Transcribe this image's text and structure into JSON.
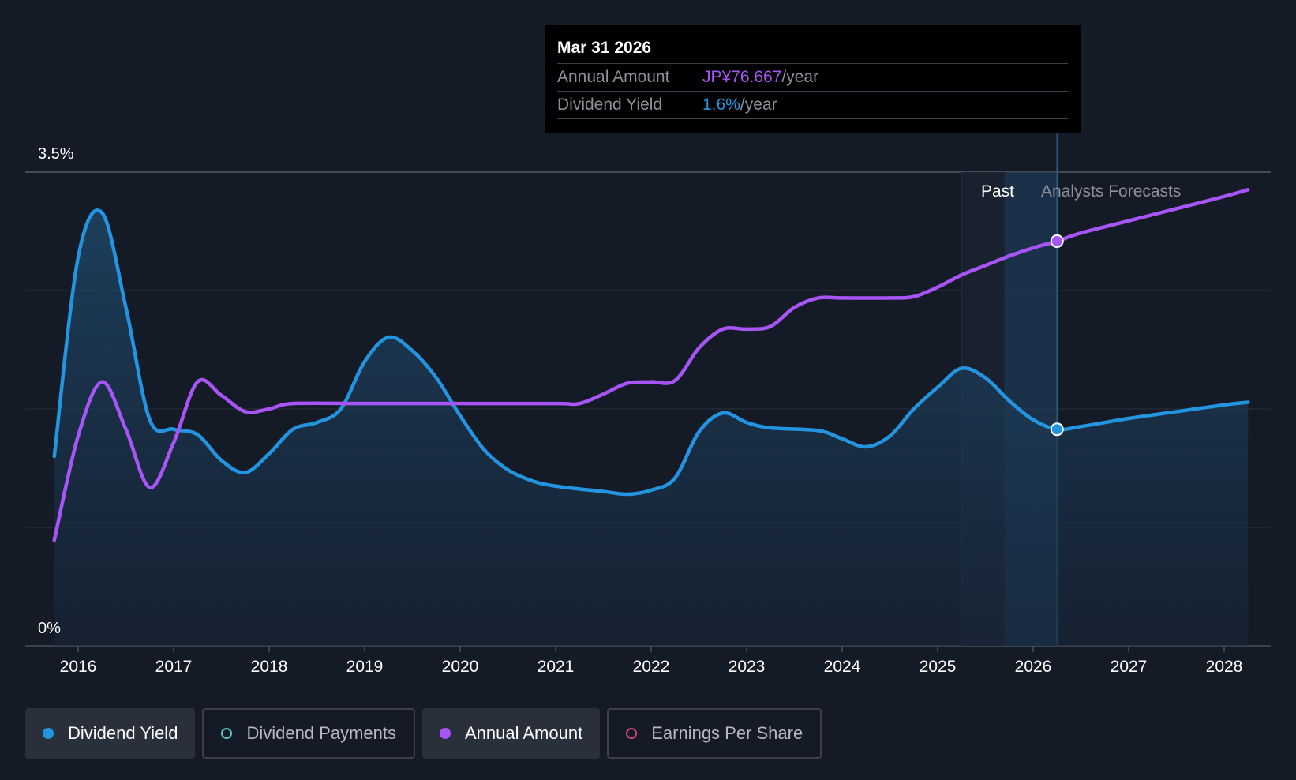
{
  "tooltip": {
    "date": "Mar 31 2026",
    "annual_label": "Annual Amount",
    "annual_value": "JP¥76.667",
    "annual_unit": "/year",
    "yield_label": "Dividend Yield",
    "yield_value": "1.6%",
    "yield_unit": "/year"
  },
  "labels": {
    "past": "Past",
    "forecast": "Analysts Forecasts"
  },
  "legend": [
    {
      "label": "Dividend Yield",
      "color": "#2394df",
      "active": true,
      "filled": true
    },
    {
      "label": "Dividend Payments",
      "color": "#5ec8c0",
      "active": false,
      "filled": false
    },
    {
      "label": "Annual Amount",
      "color": "#a855f7",
      "active": true,
      "filled": true
    },
    {
      "label": "Earnings Per Share",
      "color": "#d0457a",
      "active": false,
      "filled": false
    }
  ],
  "chart_data": {
    "type": "line",
    "x_ticks": [
      "2016",
      "2017",
      "2018",
      "2019",
      "2020",
      "2021",
      "2022",
      "2023",
      "2024",
      "2025",
      "2026",
      "2027",
      "2028"
    ],
    "y_ticks": [
      "0%",
      "3.5%"
    ],
    "ylim": [
      0,
      3.5
    ],
    "xlim": [
      2015.74,
      2028.25
    ],
    "forecast_start": 2025.7,
    "past_band_start": 2025.25,
    "cursor_x": 2026.25,
    "series": [
      {
        "name": "Dividend Yield",
        "color": "#2394df",
        "unit": "%",
        "points": [
          [
            2015.75,
            1.4
          ],
          [
            2016.0,
            2.87
          ],
          [
            2016.25,
            3.2
          ],
          [
            2016.5,
            2.5
          ],
          [
            2016.75,
            1.67
          ],
          [
            2017.0,
            1.6
          ],
          [
            2017.25,
            1.56
          ],
          [
            2017.5,
            1.37
          ],
          [
            2017.75,
            1.28
          ],
          [
            2018.0,
            1.42
          ],
          [
            2018.25,
            1.6
          ],
          [
            2018.5,
            1.65
          ],
          [
            2018.75,
            1.75
          ],
          [
            2019.0,
            2.1
          ],
          [
            2019.25,
            2.28
          ],
          [
            2019.5,
            2.18
          ],
          [
            2019.75,
            1.98
          ],
          [
            2020.0,
            1.7
          ],
          [
            2020.25,
            1.45
          ],
          [
            2020.5,
            1.3
          ],
          [
            2020.75,
            1.22
          ],
          [
            2021.0,
            1.18
          ],
          [
            2021.5,
            1.14
          ],
          [
            2021.75,
            1.12
          ],
          [
            2022.0,
            1.15
          ],
          [
            2022.25,
            1.24
          ],
          [
            2022.5,
            1.58
          ],
          [
            2022.75,
            1.72
          ],
          [
            2023.0,
            1.65
          ],
          [
            2023.25,
            1.61
          ],
          [
            2023.75,
            1.59
          ],
          [
            2024.0,
            1.53
          ],
          [
            2024.25,
            1.47
          ],
          [
            2024.5,
            1.55
          ],
          [
            2024.75,
            1.75
          ],
          [
            2025.0,
            1.91
          ],
          [
            2025.25,
            2.05
          ],
          [
            2025.5,
            1.98
          ],
          [
            2025.75,
            1.81
          ],
          [
            2026.0,
            1.67
          ],
          [
            2026.25,
            1.6
          ],
          [
            2026.5,
            1.62
          ],
          [
            2027.0,
            1.68
          ],
          [
            2027.5,
            1.73
          ],
          [
            2028.0,
            1.78
          ],
          [
            2028.25,
            1.8
          ]
        ]
      },
      {
        "name": "Annual Amount",
        "color": "#a855f7",
        "unit": "scaled",
        "points": [
          [
            2015.75,
            0.78
          ],
          [
            2016.0,
            1.55
          ],
          [
            2016.25,
            1.95
          ],
          [
            2016.5,
            1.6
          ],
          [
            2016.75,
            1.17
          ],
          [
            2017.0,
            1.5
          ],
          [
            2017.25,
            1.95
          ],
          [
            2017.5,
            1.85
          ],
          [
            2017.75,
            1.73
          ],
          [
            2018.0,
            1.75
          ],
          [
            2018.25,
            1.79
          ],
          [
            2019.0,
            1.79
          ],
          [
            2020.0,
            1.79
          ],
          [
            2021.0,
            1.79
          ],
          [
            2021.25,
            1.79
          ],
          [
            2021.5,
            1.86
          ],
          [
            2021.75,
            1.94
          ],
          [
            2022.0,
            1.95
          ],
          [
            2022.25,
            1.96
          ],
          [
            2022.5,
            2.2
          ],
          [
            2022.75,
            2.34
          ],
          [
            2023.0,
            2.34
          ],
          [
            2023.25,
            2.36
          ],
          [
            2023.5,
            2.5
          ],
          [
            2023.75,
            2.57
          ],
          [
            2024.0,
            2.57
          ],
          [
            2024.5,
            2.57
          ],
          [
            2024.75,
            2.58
          ],
          [
            2025.0,
            2.65
          ],
          [
            2025.25,
            2.74
          ],
          [
            2025.5,
            2.81
          ],
          [
            2025.75,
            2.88
          ],
          [
            2026.0,
            2.94
          ],
          [
            2026.25,
            2.99
          ],
          [
            2026.5,
            3.05
          ],
          [
            2027.0,
            3.14
          ],
          [
            2027.5,
            3.23
          ],
          [
            2028.0,
            3.32
          ],
          [
            2028.25,
            3.37
          ]
        ]
      }
    ]
  }
}
